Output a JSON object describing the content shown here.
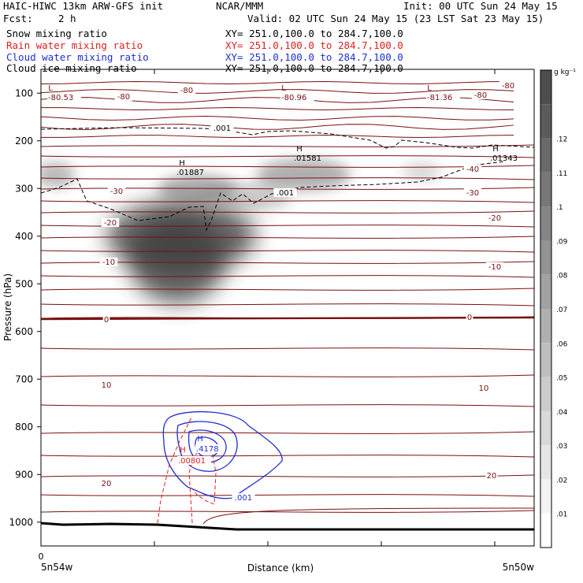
{
  "header": {
    "model": "HAIC-HIWC 13km ARW-GFS init",
    "org": "NCAR/MMM",
    "init": "Init: 00 UTC Sun 24 May 15",
    "fcst_label": "Fcst:",
    "fcst_value": "2 h",
    "valid": "Valid: 02 UTC Sun 24 May 15 (23 LST Sat 23 May 15)"
  },
  "fields": [
    {
      "name": "Snow mixing ratio",
      "xy": "XY= 251.0,100.0 to 284.7,100.0",
      "color": "#000000"
    },
    {
      "name": "Rain water mixing ratio",
      "xy": "XY= 251.0,100.0 to 284.7,100.0",
      "color": "#e02020"
    },
    {
      "name": "Cloud water mixing ratio",
      "xy": "XY= 251.0,100.0 to 284.7,100.0",
      "color": "#1f2fd0"
    },
    {
      "name": "Cloud ice mixing ratio",
      "xy": "XY= 251.0,100.0 to 284.7,100.0",
      "color": "#000000"
    }
  ],
  "chart_data": {
    "type": "contour cross-section",
    "ylabel": "Pressure (hPa)",
    "xlabel": "Distance (km)",
    "x_start_label": "5n54w",
    "x_end_label": "5n50w",
    "x_tick_label": "0",
    "y_ticks": [
      100,
      200,
      300,
      400,
      500,
      600,
      700,
      800,
      900,
      1000
    ],
    "ylim": [
      1050,
      50
    ],
    "colorbar": {
      "unit": "g kg⁻¹",
      "ticks": [
        ".01",
        ".02",
        ".03",
        ".04",
        ".05",
        ".06",
        ".07",
        ".08",
        ".09",
        ".1",
        ".11",
        ".12"
      ],
      "colors": [
        "#ffffff",
        "#f4f4f4",
        "#e6e6e6",
        "#d9d9d9",
        "#cccccc",
        "#bebebe",
        "#b0b0b0",
        "#a2a2a2",
        "#939393",
        "#858585",
        "#777777",
        "#696969",
        "#5b5b5b",
        "#4d4d4d"
      ]
    },
    "temperature_contours": {
      "color": "#7a1010",
      "labels": [
        "-80",
        "-40",
        "-30",
        "-20",
        "-10",
        "0",
        "10",
        "20"
      ],
      "extrema": [
        {
          "type": "L",
          "value": "-80.53"
        },
        {
          "type": "L",
          "value": "-80.96"
        },
        {
          "type": "L",
          "value": "-81.36"
        }
      ]
    },
    "snow_contour": {
      "label": ".001",
      "color": "#000000"
    },
    "shading_maxima": [
      {
        "type": "H",
        "value": ".01887"
      },
      {
        "type": "H",
        "value": ".01581"
      },
      {
        "type": "H",
        "value": ".01343"
      }
    ],
    "cloud_water": {
      "max_type": "H",
      "max_value": ".4178",
      "label": ".001",
      "color": "#1f2fd0"
    },
    "rain_water": {
      "max_type": "H",
      "max_value": ".00801",
      "color": "#e02020"
    }
  }
}
